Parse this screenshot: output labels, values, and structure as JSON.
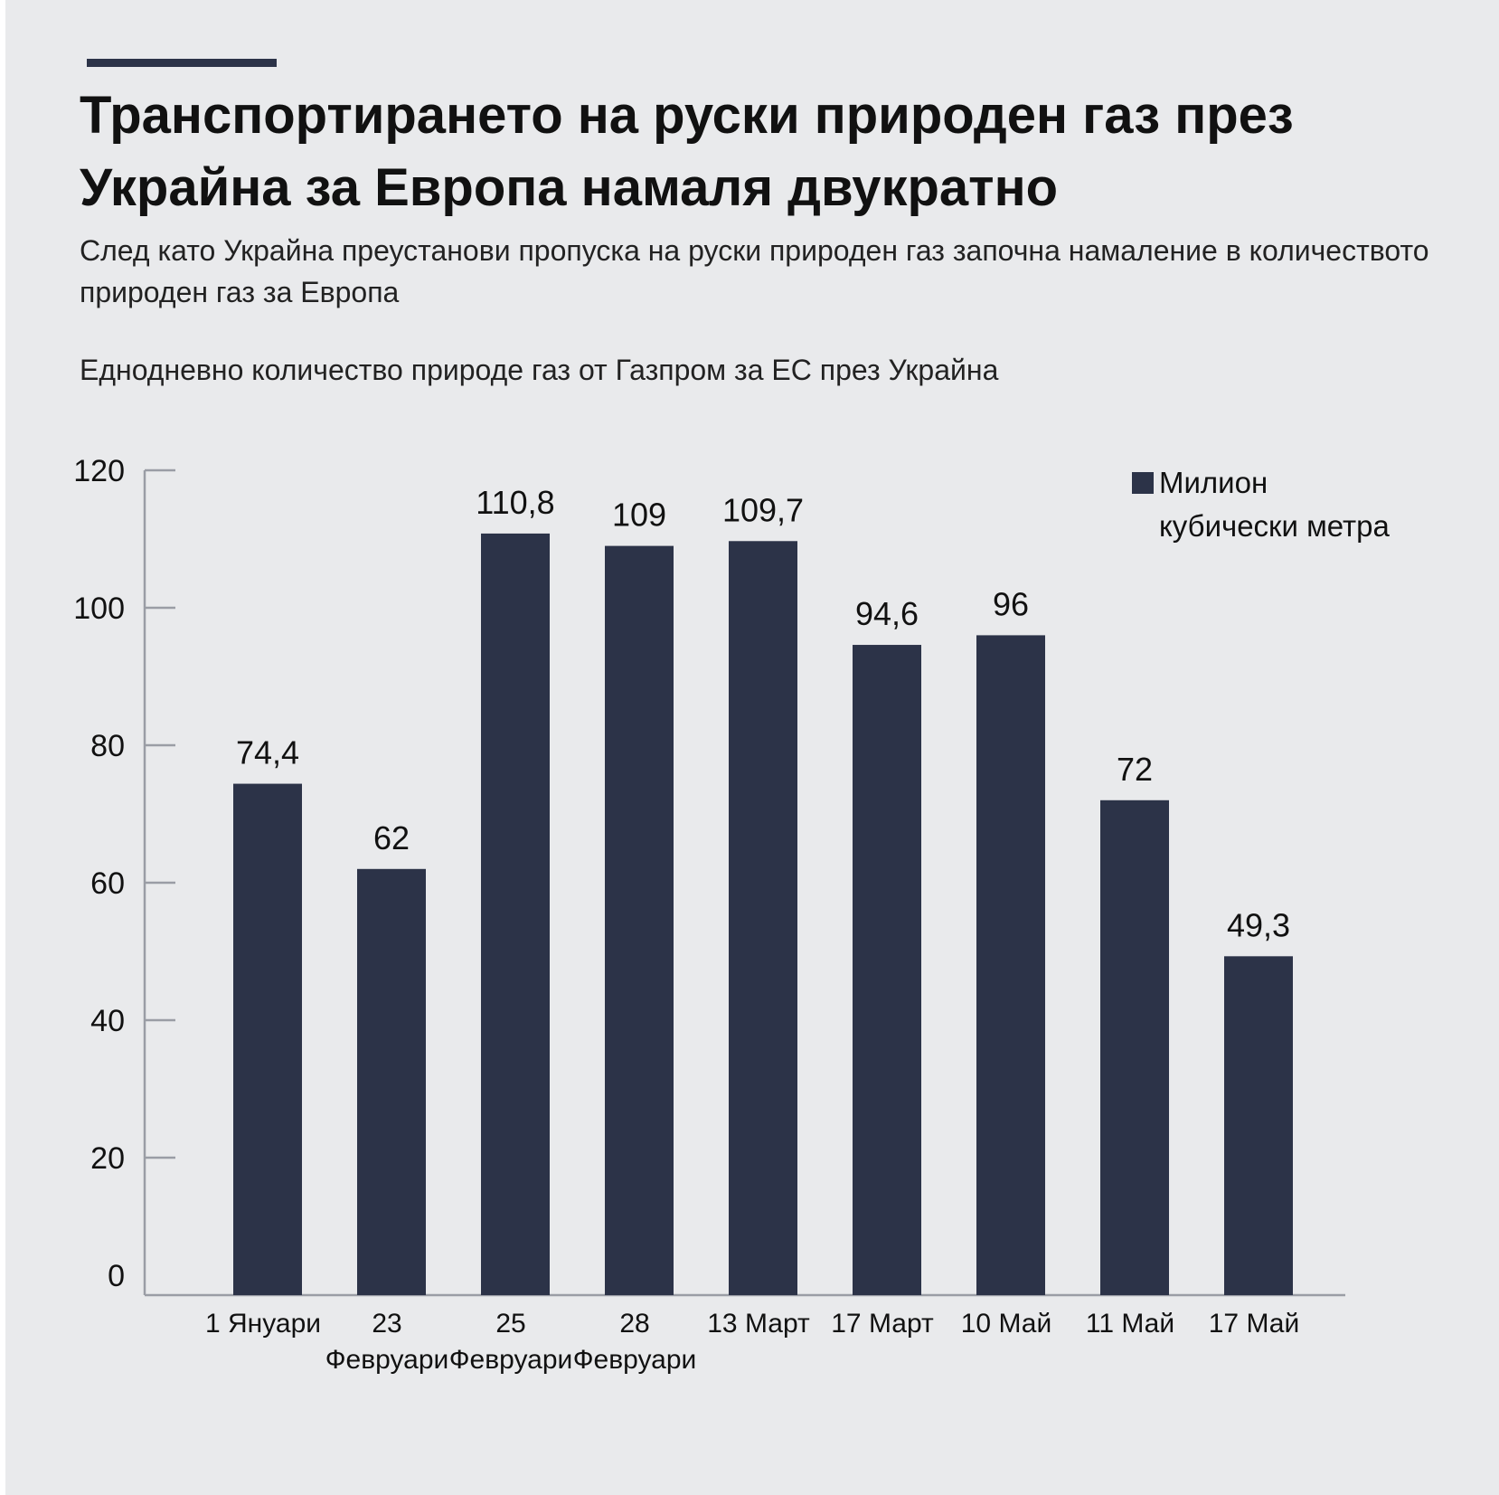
{
  "header": {
    "title": "Транспортирането на руски природен газ през Украйна за Европа намаля двукратно",
    "subtitle": "След като Украйна преустанови пропуска на руски природен газ започна намаление в количеството природен газ за Европа",
    "chart_caption": "Еднодневно количество природе газ от Газпром за ЕС през Украйна"
  },
  "chart_data": {
    "type": "bar",
    "title": "Еднодневно количество природе газ от Газпром за ЕС през Украйна",
    "categories": [
      [
        "1 Януари"
      ],
      [
        "23",
        "Февруари"
      ],
      [
        "25",
        "Февруари"
      ],
      [
        "28",
        "Февруари"
      ],
      [
        "13 Март"
      ],
      [
        "17 Март"
      ],
      [
        "10 Май"
      ],
      [
        "11 Май"
      ],
      [
        "17 Май"
      ]
    ],
    "series": [
      {
        "name": "Милион кубически метра",
        "values": [
          74.4,
          62,
          110.8,
          109,
          109.7,
          94.6,
          96,
          72,
          49.3
        ],
        "labels": [
          "74,4",
          "62",
          "110,8",
          "109",
          "109,7",
          "94,6",
          "96",
          "72",
          "49,3"
        ]
      }
    ],
    "yticks": [
      0,
      20,
      40,
      60,
      80,
      100,
      120
    ],
    "ylim": [
      0,
      120
    ],
    "xlabel": "",
    "ylabel": "",
    "grid": false,
    "legend": "top-right",
    "bar_color": "#2c3348"
  },
  "legend": {
    "label_line1": "Милион",
    "label_line2": "кубически метра"
  }
}
